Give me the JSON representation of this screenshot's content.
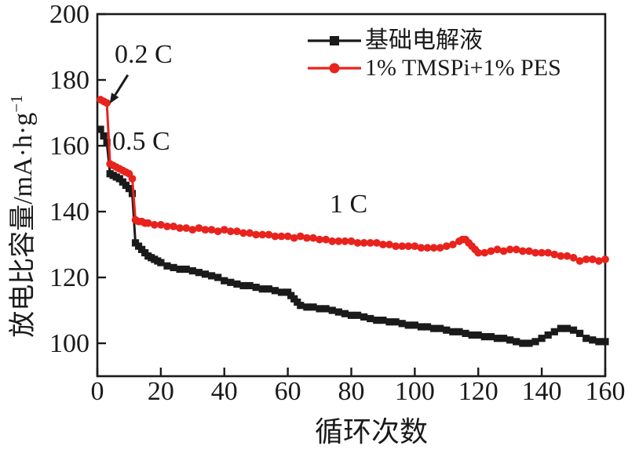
{
  "figure": {
    "background": "#ffffff",
    "ink_color": "#1a1a1a",
    "accent_red": "#e8231d"
  },
  "chart_data": {
    "type": "line",
    "title": "",
    "xlabel": "循环次数",
    "ylabel": "放电比容量/mA·h·g⁻¹",
    "ylabel_base": "放电比容量/mA·h·g",
    "ylabel_exp": "−1",
    "xlim": [
      0,
      160
    ],
    "ylim": [
      90,
      200
    ],
    "xticks": [
      0,
      20,
      40,
      60,
      80,
      100,
      120,
      140,
      160
    ],
    "yticks": [
      100,
      120,
      140,
      160,
      180,
      200
    ],
    "grid": false,
    "legend_position": "top-right-inside",
    "annotations": [
      {
        "text": "0.2 C",
        "arrow_from": [
          9.6,
          181.5
        ],
        "arrow_to": [
          3.9,
          172.8
        ]
      },
      {
        "text": "0.5 C"
      },
      {
        "text": "1 C"
      }
    ],
    "series": [
      {
        "name": "基础电解液",
        "color": "#1a1a1a",
        "marker": "square",
        "rate_segments": [
          "0.2 C cycles 1-3",
          "0.5 C cycles 4-11",
          "1 C cycles 12-160"
        ],
        "points": [
          [
            1,
            165
          ],
          [
            2,
            163
          ],
          [
            3,
            161
          ],
          [
            4,
            151.5
          ],
          [
            5,
            151
          ],
          [
            6,
            150.5
          ],
          [
            7,
            150
          ],
          [
            8,
            149
          ],
          [
            9,
            148
          ],
          [
            10,
            147
          ],
          [
            11,
            145.5
          ],
          [
            12,
            130.5
          ],
          [
            13,
            129.5
          ],
          [
            14,
            128.5
          ],
          [
            15,
            127.5
          ],
          [
            16,
            126.5
          ],
          [
            17,
            126
          ],
          [
            18,
            125.5
          ],
          [
            19,
            125
          ],
          [
            20,
            124.5
          ],
          [
            22,
            123.5
          ],
          [
            24,
            123
          ],
          [
            26,
            122.5
          ],
          [
            28,
            122.5
          ],
          [
            30,
            122
          ],
          [
            32,
            121.5
          ],
          [
            34,
            121
          ],
          [
            36,
            120.5
          ],
          [
            38,
            120
          ],
          [
            40,
            119
          ],
          [
            42,
            118.5
          ],
          [
            44,
            118
          ],
          [
            46,
            117.5
          ],
          [
            48,
            117.5
          ],
          [
            50,
            117
          ],
          [
            52,
            116.5
          ],
          [
            54,
            116.5
          ],
          [
            56,
            116
          ],
          [
            58,
            115.5
          ],
          [
            60,
            115.5
          ],
          [
            61,
            114.5
          ],
          [
            62,
            113.5
          ],
          [
            63,
            112.5
          ],
          [
            64,
            111.5
          ],
          [
            66,
            111
          ],
          [
            68,
            111
          ],
          [
            70,
            110.5
          ],
          [
            72,
            110.5
          ],
          [
            74,
            110
          ],
          [
            76,
            109.5
          ],
          [
            78,
            109
          ],
          [
            80,
            108.5
          ],
          [
            82,
            108.5
          ],
          [
            84,
            108
          ],
          [
            86,
            107.5
          ],
          [
            88,
            107
          ],
          [
            90,
            107
          ],
          [
            92,
            106.5
          ],
          [
            94,
            106.5
          ],
          [
            96,
            106
          ],
          [
            98,
            105.5
          ],
          [
            100,
            105.5
          ],
          [
            102,
            105
          ],
          [
            104,
            105
          ],
          [
            106,
            104.5
          ],
          [
            108,
            104.5
          ],
          [
            110,
            104
          ],
          [
            112,
            103.5
          ],
          [
            114,
            103.5
          ],
          [
            116,
            103
          ],
          [
            118,
            102.5
          ],
          [
            120,
            102.5
          ],
          [
            122,
            102
          ],
          [
            124,
            102
          ],
          [
            126,
            101.5
          ],
          [
            128,
            101.5
          ],
          [
            130,
            101
          ],
          [
            132,
            100.5
          ],
          [
            134,
            100
          ],
          [
            136,
            100
          ],
          [
            138,
            100.5
          ],
          [
            140,
            101.5
          ],
          [
            142,
            102.5
          ],
          [
            144,
            103.5
          ],
          [
            146,
            104.5
          ],
          [
            148,
            104.5
          ],
          [
            150,
            104
          ],
          [
            152,
            103
          ],
          [
            154,
            101.5
          ],
          [
            156,
            101
          ],
          [
            158,
            100.5
          ],
          [
            160,
            100.5
          ]
        ]
      },
      {
        "name": "1% TMSPi+1% PES",
        "color": "#e8231d",
        "marker": "circle",
        "rate_segments": [
          "0.2 C cycles 1-3",
          "0.5 C cycles 4-11",
          "1 C cycles 12-160"
        ],
        "points": [
          [
            1,
            174
          ],
          [
            2,
            173.5
          ],
          [
            3,
            173
          ],
          [
            4,
            154.5
          ],
          [
            5,
            154
          ],
          [
            6,
            153.5
          ],
          [
            7,
            153
          ],
          [
            8,
            152.5
          ],
          [
            9,
            152
          ],
          [
            10,
            151.5
          ],
          [
            11,
            150
          ],
          [
            12,
            137.5
          ],
          [
            13,
            137
          ],
          [
            14,
            137
          ],
          [
            15,
            136.5
          ],
          [
            16,
            136.5
          ],
          [
            18,
            136
          ],
          [
            20,
            136
          ],
          [
            22,
            135.5
          ],
          [
            24,
            135.5
          ],
          [
            26,
            135
          ],
          [
            28,
            135
          ],
          [
            30,
            134.5
          ],
          [
            32,
            135
          ],
          [
            34,
            134.5
          ],
          [
            36,
            134.5
          ],
          [
            38,
            134
          ],
          [
            40,
            134.5
          ],
          [
            42,
            134
          ],
          [
            44,
            134
          ],
          [
            46,
            133.5
          ],
          [
            48,
            133.5
          ],
          [
            50,
            133
          ],
          [
            52,
            133
          ],
          [
            54,
            133
          ],
          [
            56,
            132.5
          ],
          [
            58,
            132.5
          ],
          [
            60,
            132.5
          ],
          [
            62,
            132
          ],
          [
            64,
            132.5
          ],
          [
            66,
            132
          ],
          [
            68,
            132
          ],
          [
            70,
            131.5
          ],
          [
            72,
            131.5
          ],
          [
            74,
            131
          ],
          [
            76,
            131
          ],
          [
            78,
            131
          ],
          [
            80,
            131
          ],
          [
            82,
            130.5
          ],
          [
            84,
            130.5
          ],
          [
            86,
            130.5
          ],
          [
            88,
            130.5
          ],
          [
            90,
            130
          ],
          [
            92,
            130
          ],
          [
            94,
            129.5
          ],
          [
            96,
            129.5
          ],
          [
            98,
            129.5
          ],
          [
            100,
            129.5
          ],
          [
            102,
            129
          ],
          [
            104,
            129
          ],
          [
            106,
            129
          ],
          [
            108,
            129
          ],
          [
            110,
            129.5
          ],
          [
            112,
            130
          ],
          [
            114,
            131
          ],
          [
            115,
            131.5
          ],
          [
            116,
            131.5
          ],
          [
            117,
            130.5
          ],
          [
            118,
            129.5
          ],
          [
            119,
            128.5
          ],
          [
            120,
            127.5
          ],
          [
            122,
            127.5
          ],
          [
            124,
            128
          ],
          [
            126,
            128.5
          ],
          [
            128,
            128
          ],
          [
            130,
            128.5
          ],
          [
            132,
            128.5
          ],
          [
            134,
            128
          ],
          [
            136,
            128
          ],
          [
            138,
            127.5
          ],
          [
            140,
            127.5
          ],
          [
            142,
            127.5
          ],
          [
            144,
            127
          ],
          [
            146,
            126.5
          ],
          [
            148,
            126.5
          ],
          [
            150,
            126
          ],
          [
            152,
            125
          ],
          [
            154,
            125.5
          ],
          [
            156,
            125.5
          ],
          [
            158,
            125
          ],
          [
            160,
            125.5
          ]
        ]
      }
    ]
  }
}
